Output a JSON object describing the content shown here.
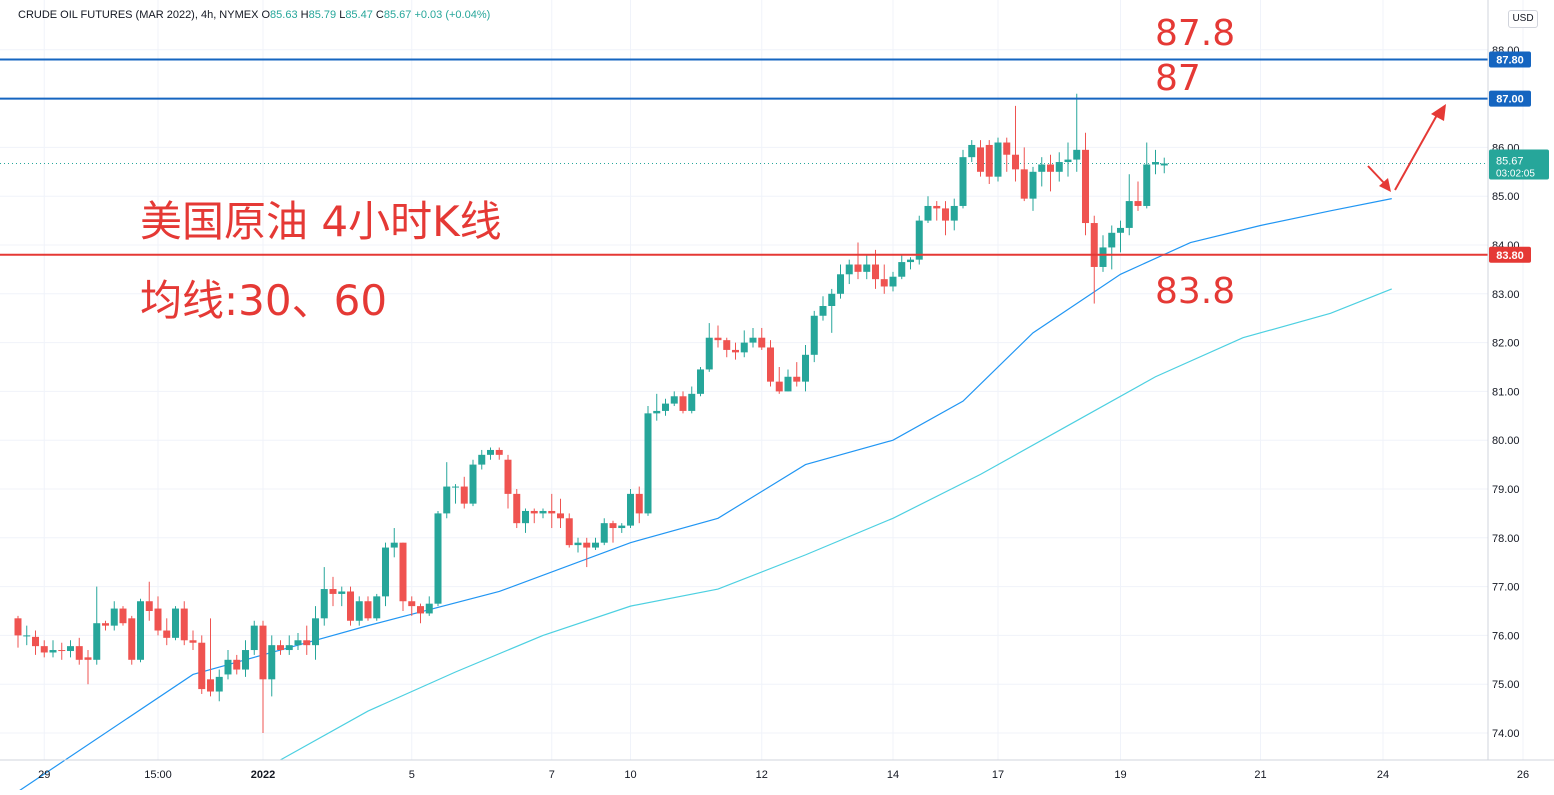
{
  "header": {
    "symbol": "CRUDE OIL FUTURES (MAR 2022), 4h, NYMEX",
    "open_label": "O",
    "open": "85.63",
    "high_label": "H",
    "high": "85.79",
    "low_label": "L",
    "low": "85.47",
    "close_label": "C",
    "close": "85.67",
    "change": "+0.03 (+0.04%)"
  },
  "currency": "USD",
  "annotations": {
    "title_cn": "美国原油 4小时K线",
    "ma_cn": "均线:30、60",
    "level_878": "87.8",
    "level_87": "87",
    "level_838": "83.8"
  },
  "price_tag": {
    "price": "85.67",
    "countdown": "03:02:05"
  },
  "colors": {
    "up": "#26a69a",
    "down": "#ef5350",
    "ma30": "#2196f3",
    "ma60": "#4dd0e1",
    "resistance": "#1565c0",
    "support": "#e53935",
    "annotation": "#e53935"
  },
  "chart_data": {
    "type": "candlestick",
    "title": "CRUDE OIL FUTURES (MAR 2022), 4h, NYMEX",
    "ylim": [
      73.4,
      88.4
    ],
    "y_ticks": [
      "74.00",
      "75.00",
      "76.00",
      "77.00",
      "78.00",
      "79.00",
      "80.00",
      "81.00",
      "82.00",
      "83.00",
      "84.00",
      "85.00",
      "86.00",
      "88.00"
    ],
    "x_ticks": [
      "29",
      "15:00",
      "2022",
      "5",
      "7",
      "10",
      "12",
      "14",
      "17",
      "19",
      "21",
      "24",
      "26"
    ],
    "x_tick_index": [
      3,
      16,
      28,
      45,
      61,
      70,
      85,
      100,
      112,
      126,
      142,
      156,
      172
    ],
    "grid": true,
    "horizontal_lines": [
      {
        "value": 87.8,
        "label": "87.80",
        "color": "#1565c0"
      },
      {
        "value": 87.0,
        "label": "87.00",
        "color": "#1565c0"
      },
      {
        "value": 83.8,
        "label": "83.80",
        "color": "#e53935"
      }
    ],
    "last_price": 85.67,
    "candles": [
      [
        76.35,
        76.0,
        75.75,
        76.4
      ],
      [
        76.0,
        76.0,
        75.8,
        76.2
      ],
      [
        75.97,
        75.78,
        75.6,
        76.1
      ],
      [
        75.78,
        75.65,
        75.55,
        75.9
      ],
      [
        75.65,
        75.7,
        75.55,
        75.9
      ],
      [
        75.7,
        75.68,
        75.5,
        75.85
      ],
      [
        75.68,
        75.78,
        75.55,
        75.9
      ],
      [
        75.78,
        75.5,
        75.4,
        75.95
      ],
      [
        75.55,
        75.5,
        75.0,
        75.7
      ],
      [
        75.5,
        76.25,
        75.4,
        77.0
      ],
      [
        76.25,
        76.2,
        76.1,
        76.3
      ],
      [
        76.2,
        76.55,
        76.1,
        76.7
      ],
      [
        76.55,
        76.25,
        76.2,
        76.6
      ],
      [
        76.35,
        75.5,
        75.4,
        76.4
      ],
      [
        75.5,
        76.7,
        75.45,
        76.75
      ],
      [
        76.7,
        76.5,
        76.3,
        77.1
      ],
      [
        76.55,
        76.1,
        76.0,
        76.8
      ],
      [
        76.1,
        75.95,
        75.8,
        76.35
      ],
      [
        75.95,
        76.55,
        75.9,
        76.6
      ],
      [
        76.55,
        75.9,
        75.8,
        76.7
      ],
      [
        75.9,
        75.85,
        75.7,
        76.1
      ],
      [
        75.85,
        74.9,
        74.8,
        76.0
      ],
      [
        75.1,
        74.85,
        74.75,
        76.35
      ],
      [
        74.85,
        75.15,
        74.65,
        75.3
      ],
      [
        75.2,
        75.5,
        75.1,
        75.7
      ],
      [
        75.5,
        75.3,
        75.2,
        75.6
      ],
      [
        75.3,
        75.7,
        75.15,
        75.9
      ],
      [
        75.7,
        76.2,
        75.6,
        76.3
      ],
      [
        76.2,
        75.1,
        74.0,
        76.3
      ],
      [
        75.1,
        75.8,
        74.75,
        76.0
      ],
      [
        75.8,
        75.7,
        75.6,
        75.9
      ],
      [
        75.7,
        75.8,
        75.6,
        76.0
      ],
      [
        75.8,
        75.9,
        75.7,
        76.05
      ],
      [
        75.9,
        75.8,
        75.6,
        76.2
      ],
      [
        75.8,
        76.35,
        75.5,
        76.6
      ],
      [
        76.35,
        76.95,
        76.2,
        77.4
      ],
      [
        76.95,
        76.85,
        76.6,
        77.2
      ],
      [
        76.85,
        76.9,
        76.6,
        77.0
      ],
      [
        76.9,
        76.3,
        76.2,
        77.0
      ],
      [
        76.3,
        76.7,
        76.2,
        76.8
      ],
      [
        76.7,
        76.35,
        76.3,
        76.8
      ],
      [
        76.35,
        76.8,
        76.3,
        76.85
      ],
      [
        76.8,
        77.8,
        76.6,
        77.9
      ],
      [
        77.8,
        77.9,
        77.6,
        78.2
      ],
      [
        77.9,
        76.7,
        76.5,
        77.9
      ],
      [
        76.7,
        76.6,
        76.4,
        76.8
      ],
      [
        76.6,
        76.45,
        76.25,
        76.65
      ],
      [
        76.45,
        76.65,
        76.4,
        76.8
      ],
      [
        76.65,
        78.5,
        76.6,
        78.55
      ],
      [
        78.5,
        79.05,
        78.4,
        79.55
      ],
      [
        79.05,
        79.05,
        78.7,
        79.1
      ],
      [
        79.05,
        78.7,
        78.6,
        79.25
      ],
      [
        78.7,
        79.5,
        78.65,
        79.6
      ],
      [
        79.5,
        79.7,
        79.4,
        79.8
      ],
      [
        79.7,
        79.8,
        79.6,
        79.85
      ],
      [
        79.8,
        79.7,
        79.6,
        79.85
      ],
      [
        79.6,
        78.9,
        78.6,
        79.7
      ],
      [
        78.9,
        78.3,
        78.2,
        79.0
      ],
      [
        78.3,
        78.55,
        78.1,
        78.6
      ],
      [
        78.55,
        78.5,
        78.3,
        78.6
      ],
      [
        78.5,
        78.55,
        78.4,
        78.6
      ],
      [
        78.55,
        78.5,
        78.2,
        78.9
      ],
      [
        78.5,
        78.4,
        78.2,
        78.8
      ],
      [
        78.4,
        77.85,
        77.8,
        78.5
      ],
      [
        77.85,
        77.9,
        77.7,
        78.0
      ],
      [
        77.9,
        77.8,
        77.4,
        78.0
      ],
      [
        77.8,
        77.9,
        77.75,
        78.0
      ],
      [
        77.9,
        78.3,
        77.85,
        78.4
      ],
      [
        78.3,
        78.2,
        77.9,
        78.35
      ],
      [
        78.2,
        78.25,
        78.1,
        78.3
      ],
      [
        78.25,
        78.9,
        78.2,
        79.0
      ],
      [
        78.9,
        78.5,
        78.3,
        79.05
      ],
      [
        78.5,
        80.55,
        78.45,
        80.7
      ],
      [
        80.55,
        80.6,
        80.4,
        80.95
      ],
      [
        80.6,
        80.75,
        80.5,
        80.85
      ],
      [
        80.75,
        80.9,
        80.7,
        81.0
      ],
      [
        80.9,
        80.6,
        80.55,
        81.0
      ],
      [
        80.6,
        80.95,
        80.55,
        81.1
      ],
      [
        80.95,
        81.45,
        80.9,
        81.5
      ],
      [
        81.45,
        82.1,
        81.4,
        82.4
      ],
      [
        82.1,
        82.05,
        81.9,
        82.35
      ],
      [
        82.05,
        81.85,
        81.7,
        82.1
      ],
      [
        81.85,
        81.8,
        81.65,
        82.0
      ],
      [
        81.8,
        82.0,
        81.7,
        82.25
      ],
      [
        82.0,
        82.1,
        81.9,
        82.3
      ],
      [
        82.1,
        81.9,
        81.85,
        82.3
      ],
      [
        81.9,
        81.2,
        81.1,
        82.05
      ],
      [
        81.2,
        81.0,
        80.95,
        81.5
      ],
      [
        81.0,
        81.3,
        81.0,
        81.45
      ],
      [
        81.3,
        81.2,
        81.1,
        81.6
      ],
      [
        81.2,
        81.75,
        81.0,
        81.95
      ],
      [
        81.75,
        82.55,
        81.6,
        82.65
      ],
      [
        82.55,
        82.75,
        82.45,
        82.95
      ],
      [
        82.75,
        83.0,
        82.2,
        83.1
      ],
      [
        83.0,
        83.4,
        82.9,
        83.6
      ],
      [
        83.4,
        83.6,
        83.2,
        83.7
      ],
      [
        83.6,
        83.45,
        83.3,
        84.05
      ],
      [
        83.45,
        83.6,
        83.3,
        83.8
      ],
      [
        83.6,
        83.3,
        83.1,
        83.9
      ],
      [
        83.3,
        83.15,
        83.0,
        83.6
      ],
      [
        83.15,
        83.35,
        83.05,
        83.45
      ],
      [
        83.35,
        83.65,
        83.3,
        83.8
      ],
      [
        83.65,
        83.7,
        83.5,
        83.75
      ],
      [
        83.7,
        84.5,
        83.6,
        84.6
      ],
      [
        84.5,
        84.8,
        84.45,
        85.0
      ],
      [
        84.8,
        84.75,
        84.5,
        84.9
      ],
      [
        84.75,
        84.5,
        84.2,
        84.9
      ],
      [
        84.5,
        84.8,
        84.3,
        84.95
      ],
      [
        84.8,
        85.8,
        84.75,
        85.95
      ],
      [
        85.8,
        86.05,
        85.7,
        86.15
      ],
      [
        86.0,
        85.5,
        85.4,
        86.15
      ],
      [
        86.05,
        85.4,
        85.25,
        86.15
      ],
      [
        85.4,
        86.1,
        85.3,
        86.2
      ],
      [
        86.1,
        85.85,
        85.5,
        86.2
      ],
      [
        85.85,
        85.55,
        85.3,
        86.85
      ],
      [
        85.55,
        84.95,
        84.9,
        86.0
      ],
      [
        84.95,
        85.5,
        84.7,
        85.6
      ],
      [
        85.5,
        85.65,
        85.2,
        85.8
      ],
      [
        85.65,
        85.5,
        85.1,
        85.85
      ],
      [
        85.5,
        85.7,
        85.3,
        85.9
      ],
      [
        85.7,
        85.75,
        85.4,
        86.1
      ],
      [
        85.75,
        85.95,
        85.5,
        87.1
      ],
      [
        85.95,
        84.45,
        84.2,
        86.3
      ],
      [
        84.45,
        83.55,
        82.8,
        84.6
      ],
      [
        83.55,
        83.95,
        83.45,
        84.2
      ],
      [
        83.95,
        84.25,
        83.5,
        84.4
      ],
      [
        84.25,
        84.35,
        83.85,
        84.5
      ],
      [
        84.35,
        84.9,
        84.2,
        85.45
      ],
      [
        84.9,
        84.8,
        84.7,
        85.3
      ],
      [
        84.8,
        85.65,
        84.75,
        86.1
      ],
      [
        85.65,
        85.7,
        85.45,
        85.95
      ],
      [
        85.63,
        85.67,
        85.47,
        85.79
      ]
    ],
    "series": [
      {
        "name": "MA 30",
        "type": "line",
        "color": "#2196f3",
        "x": [
          0,
          20,
          40,
          55,
          70,
          80,
          90,
          100,
          108,
          116,
          126,
          134,
          142,
          150,
          157
        ],
        "values": [
          72.8,
          75.2,
          76.2,
          76.9,
          77.9,
          78.4,
          79.5,
          80.0,
          80.8,
          82.2,
          83.4,
          84.05,
          84.4,
          84.7,
          84.95
        ]
      },
      {
        "name": "MA 60",
        "type": "line",
        "color": "#4dd0e1",
        "x": [
          30,
          40,
          50,
          60,
          70,
          80,
          90,
          100,
          110,
          120,
          130,
          140,
          150,
          157
        ],
        "values": [
          73.45,
          74.45,
          75.25,
          76.0,
          76.6,
          76.95,
          77.65,
          78.4,
          79.3,
          80.3,
          81.3,
          82.1,
          82.6,
          83.1
        ]
      }
    ]
  }
}
